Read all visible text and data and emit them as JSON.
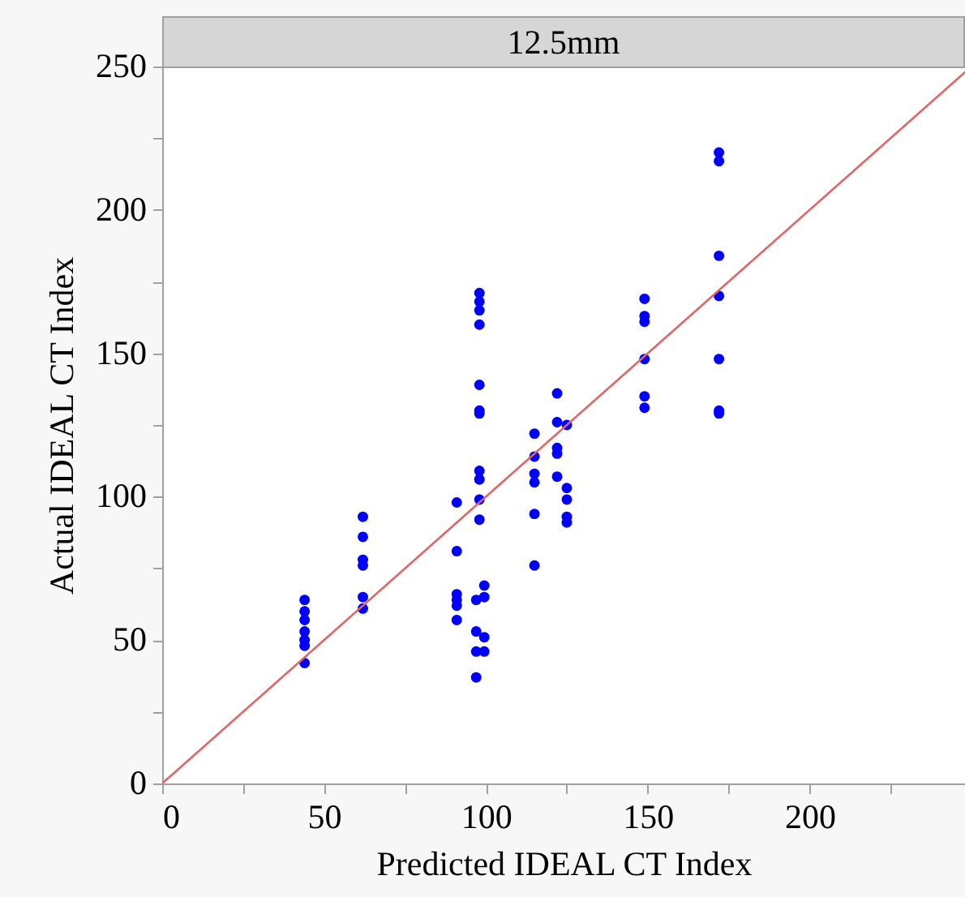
{
  "chart_data": {
    "type": "scatter",
    "title": "12.5mm",
    "xlabel": "Predicted IDEAL CT Index",
    "ylabel": "Actual IDEAL CT Index",
    "xlim": [
      0,
      248
    ],
    "ylim": [
      0,
      250
    ],
    "xticks": [
      0,
      {
        "value": 25,
        "label": null
      },
      50,
      {
        "value": 75,
        "label": null
      },
      100,
      {
        "value": 125,
        "label": null
      },
      150,
      {
        "value": 175,
        "label": null
      },
      200,
      {
        "value": 225,
        "label": null
      }
    ],
    "yticks": [
      0,
      {
        "value": 25,
        "label": null
      },
      50,
      {
        "value": 75,
        "label": null
      },
      100,
      {
        "value": 125,
        "label": null
      },
      150,
      {
        "value": 175,
        "label": null
      },
      200,
      {
        "value": 225,
        "label": null
      },
      250
    ],
    "grid": false,
    "series": [
      {
        "color": "#0000ff",
        "marker": "circle",
        "x": [
          44,
          44,
          44,
          44,
          44,
          44,
          44,
          62,
          62,
          62,
          62,
          62,
          62,
          91,
          91,
          91,
          91,
          91,
          91,
          98,
          98,
          98,
          98,
          98,
          98,
          98,
          98,
          98,
          98,
          98,
          97,
          97,
          97,
          97,
          99.5,
          99.5,
          99.5,
          99.5,
          115,
          115,
          115,
          115,
          115,
          115,
          122,
          122,
          122,
          122,
          122,
          125,
          125,
          125,
          125,
          125,
          149,
          149,
          149,
          149,
          149,
          149,
          172,
          172,
          172,
          172,
          172,
          172,
          172
        ],
        "values": [
          64,
          60,
          57,
          53,
          50,
          48,
          42,
          93,
          86,
          78,
          76,
          65,
          61,
          98,
          81,
          66,
          64,
          62,
          57,
          171,
          168,
          165,
          160,
          139,
          130,
          129,
          109,
          106,
          99,
          92,
          64,
          53,
          46,
          37,
          69,
          65,
          51,
          46,
          122,
          114,
          108,
          105,
          94,
          76,
          136,
          126,
          117,
          115,
          107,
          125,
          103,
          99,
          93,
          91,
          169,
          163,
          161,
          148,
          135,
          131,
          220,
          217,
          184,
          170,
          148,
          130,
          129
        ]
      },
      {
        "type": "line",
        "color": "#e06666",
        "x": [
          0,
          248
        ],
        "values": [
          0,
          248
        ],
        "line_style": "solid"
      }
    ]
  }
}
